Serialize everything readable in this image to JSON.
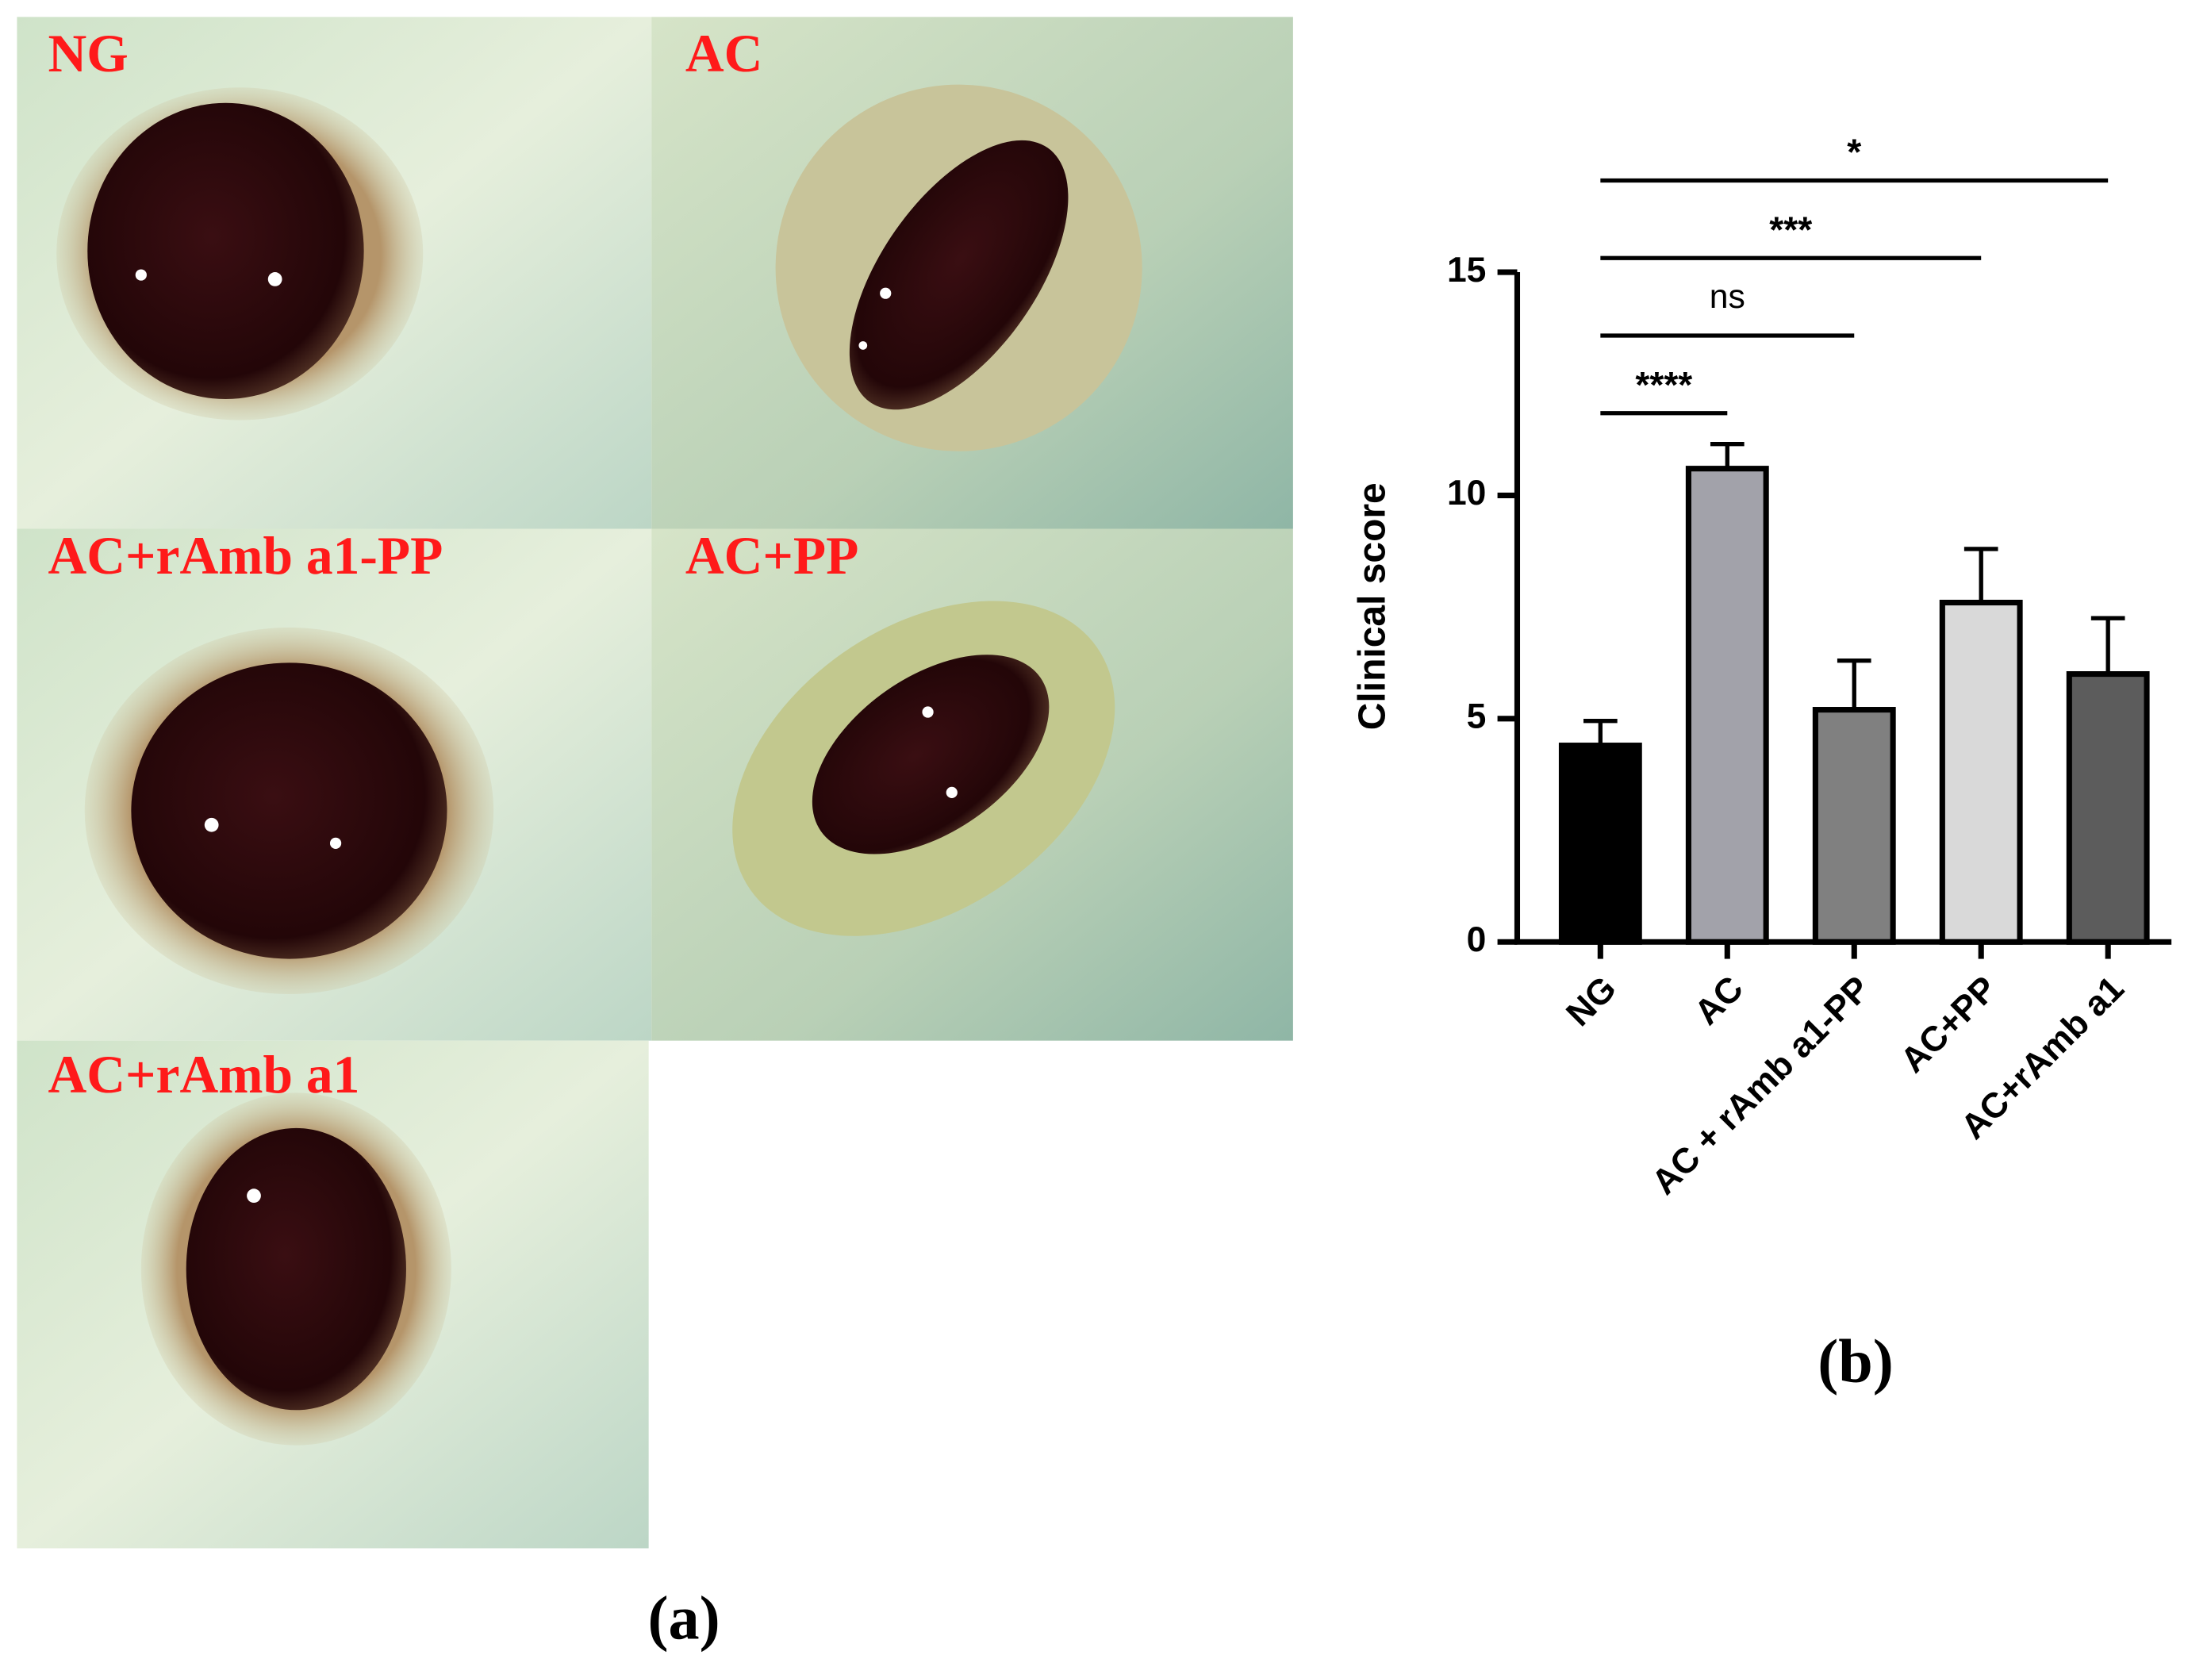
{
  "photos": [
    {
      "label": "NG"
    },
    {
      "label": "AC"
    },
    {
      "label": "AC+rAmb a1-PP"
    },
    {
      "label": "AC+PP"
    },
    {
      "label": "AC+rAmb a1"
    }
  ],
  "figure_labels": [
    "(a)",
    "(b)"
  ],
  "chart_data": {
    "type": "bar",
    "categories": [
      "NG",
      "AC",
      "AC + rAmb a1-PP",
      "AC+PP",
      "AC+rAmb a1"
    ],
    "values": [
      4.4,
      10.6,
      5.2,
      7.6,
      6.0
    ],
    "errors": [
      0.55,
      0.55,
      1.1,
      1.2,
      1.25
    ],
    "colors": [
      "#000000",
      "#a2a2aa",
      "#808080",
      "#d9d9d9",
      "#5c5c5c"
    ],
    "ylabel": "Clinical score",
    "ylim": [
      0,
      15
    ],
    "yticks": [
      0,
      5,
      10,
      15
    ],
    "annotations": [
      {
        "label": "****",
        "groups": [
          "NG",
          "AC"
        ]
      },
      {
        "label": "ns",
        "groups": [
          "NG",
          "AC + rAmb a1-PP"
        ]
      },
      {
        "label": "***",
        "groups": [
          "NG",
          "AC+PP"
        ]
      },
      {
        "label": "*",
        "groups": [
          "NG",
          "AC+rAmb a1"
        ]
      }
    ]
  }
}
